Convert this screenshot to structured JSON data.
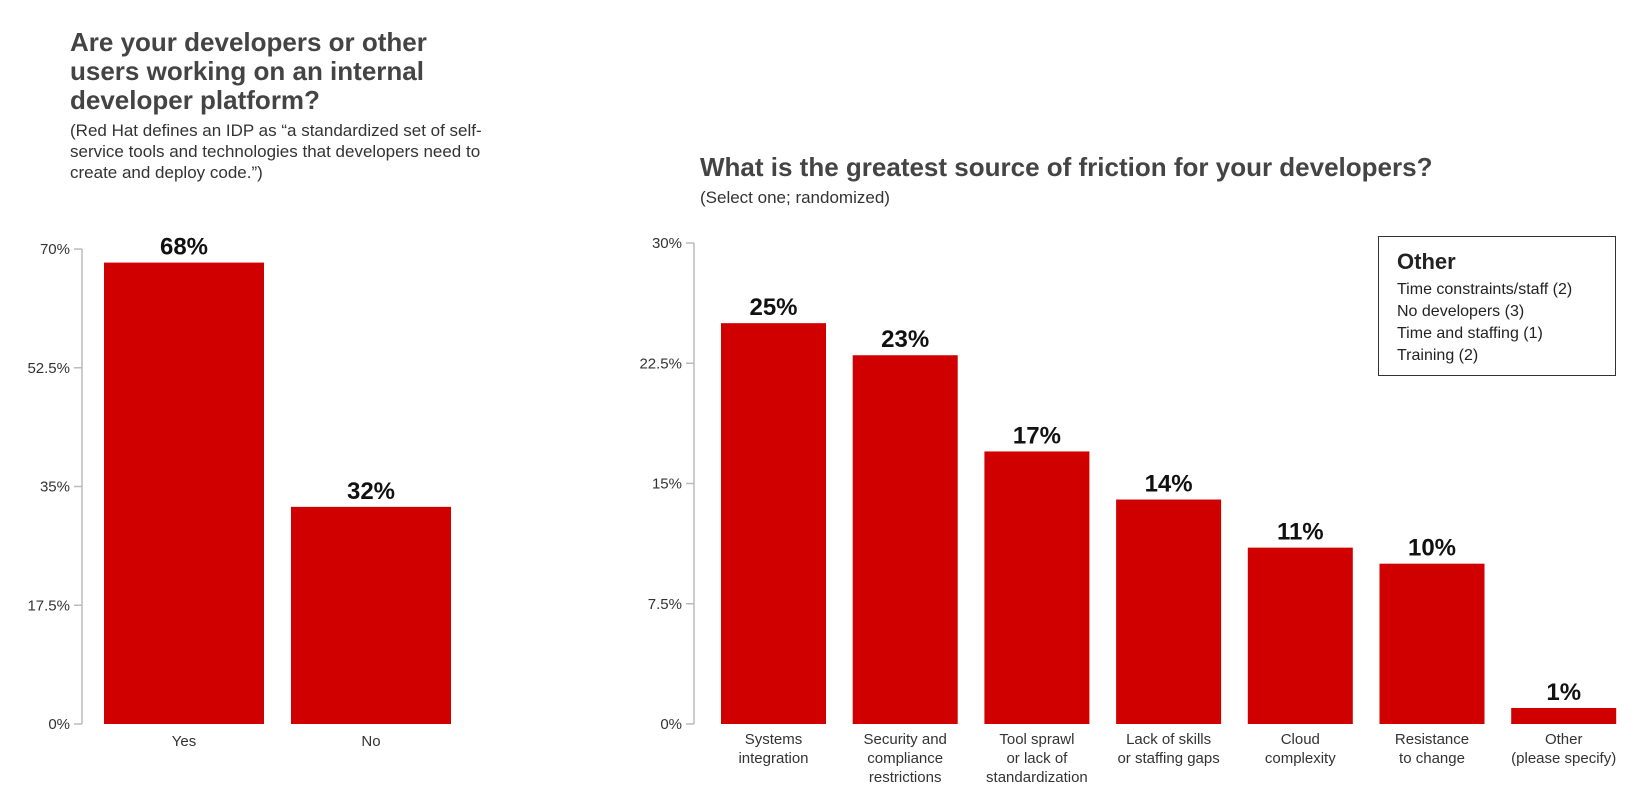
{
  "chart_data": [
    {
      "type": "bar",
      "title": "Are your developers or other users working on an internal developer platform?",
      "subtitle": "(Red Hat defines an IDP as “a standardized set of self-service tools and technologies that developers need to create and deploy code.”)",
      "categories": [
        "Yes",
        "No"
      ],
      "values": [
        68,
        32
      ],
      "data_labels": [
        "68%",
        "32%"
      ],
      "ylim": [
        0,
        70
      ],
      "yticks": [
        "0%",
        "17.5%",
        "35%",
        "52.5%",
        "70%"
      ],
      "ytick_values": [
        0,
        17.5,
        35,
        52.5,
        70
      ],
      "bar_color": "#d10000",
      "grid": false
    },
    {
      "type": "bar",
      "title": "What is the greatest source of friction for your developers?",
      "subtitle": "(Select one; randomized)",
      "categories": [
        "Systems integration",
        "Security and compliance restrictions",
        "Tool sprawl or lack of standardization",
        "Lack of skills or staffing gaps",
        "Cloud complexity",
        "Resistance to change",
        "Other (please specify)"
      ],
      "category_lines": [
        [
          "Systems",
          "integration"
        ],
        [
          "Security and",
          "compliance",
          "restrictions"
        ],
        [
          "Tool sprawl",
          "or lack of",
          "standardization"
        ],
        [
          "Lack of skills",
          "or staffing gaps"
        ],
        [
          "Cloud",
          "complexity"
        ],
        [
          "Resistance",
          "to change"
        ],
        [
          "Other",
          "(please specify)"
        ]
      ],
      "values": [
        25,
        23,
        17,
        14,
        11,
        10,
        1
      ],
      "data_labels": [
        "25%",
        "23%",
        "17%",
        "14%",
        "11%",
        "10%",
        "1%"
      ],
      "ylim": [
        0,
        30
      ],
      "yticks": [
        "0%",
        "7.5%",
        "15%",
        "22.5%",
        "30%"
      ],
      "ytick_values": [
        0,
        7.5,
        15,
        22.5,
        30
      ],
      "bar_color": "#d10000",
      "grid": false,
      "annotation_box": {
        "title": "Other",
        "lines": [
          "Time constraints/staff (2)",
          "No developers (3)",
          "Time and staffing (1)",
          "Training (2)"
        ],
        "placement": "top-right"
      }
    }
  ]
}
